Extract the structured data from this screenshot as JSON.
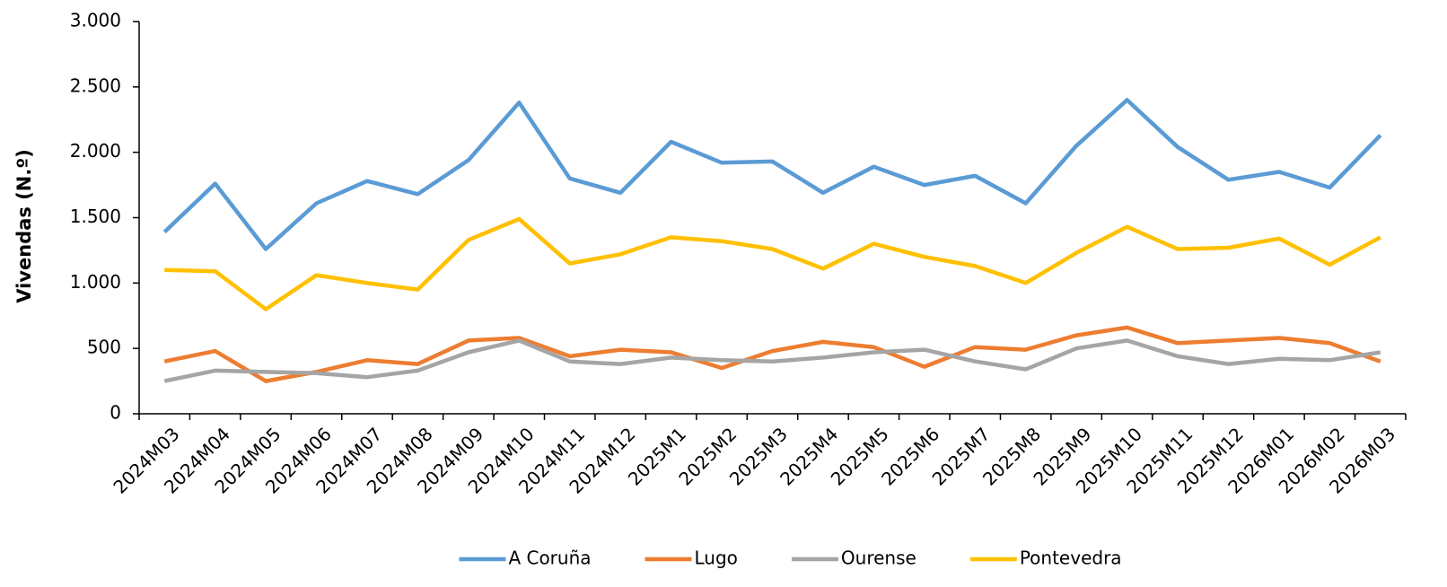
{
  "chart_data": {
    "type": "line",
    "y_label": "Vivendas (N.º)",
    "categories": [
      "2024M03",
      "2024M04",
      "2024M05",
      "2024M06",
      "2024M07",
      "2024M08",
      "2024M09",
      "2024M10",
      "2024M11",
      "2024M12",
      "2025M1",
      "2025M2",
      "2025M3",
      "2025M4",
      "2025M5",
      "2025M6",
      "2025M7",
      "2025M8",
      "2025M9",
      "2025M10",
      "2025M11",
      "2025M12",
      "2026M01",
      "2026M02",
      "2026M03"
    ],
    "series": [
      {
        "name": "A Coruña",
        "color": "#5b9bd5",
        "values": [
          1390,
          1760,
          1260,
          1610,
          1780,
          1680,
          1940,
          2380,
          1800,
          1690,
          2080,
          1920,
          1930,
          1690,
          1890,
          1750,
          1820,
          1610,
          2050,
          2400,
          2040,
          1790,
          1850,
          1730,
          2130
        ]
      },
      {
        "name": "Lugo",
        "color": "#ed7d31",
        "values": [
          400,
          480,
          250,
          320,
          410,
          380,
          560,
          580,
          440,
          490,
          470,
          350,
          480,
          550,
          510,
          360,
          510,
          490,
          600,
          660,
          540,
          560,
          580,
          540,
          400
        ]
      },
      {
        "name": "Ourense",
        "color": "#a5a5a5",
        "values": [
          250,
          330,
          320,
          310,
          280,
          330,
          470,
          560,
          400,
          380,
          430,
          410,
          400,
          430,
          470,
          490,
          400,
          340,
          500,
          560,
          440,
          380,
          420,
          410,
          470
        ]
      },
      {
        "name": "Pontevedra",
        "color": "#ffc000",
        "values": [
          1100,
          1090,
          800,
          1060,
          1000,
          950,
          1330,
          1490,
          1150,
          1220,
          1350,
          1320,
          1260,
          1110,
          1300,
          1200,
          1130,
          1000,
          1230,
          1430,
          1260,
          1270,
          1340,
          1140,
          1350
        ]
      }
    ],
    "ylim": [
      0,
      3000
    ],
    "yticks": [
      0,
      500,
      {
        "value": 1000,
        "label": "1.000"
      },
      {
        "value": 1500,
        "label": "1.500"
      },
      {
        "value": 2000,
        "label": "2.000"
      },
      {
        "value": 2500,
        "label": "2.500"
      },
      {
        "value": 3000,
        "label": "3.000"
      }
    ],
    "grid": false,
    "legend": "bottom"
  }
}
